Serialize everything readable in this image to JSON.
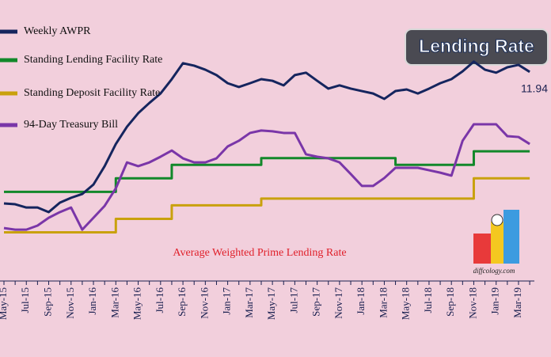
{
  "chart_data": {
    "type": "line",
    "title": "Average Weighted Prime Lending Rate",
    "badge": "Lending Rate",
    "watermark": "diffcology.com",
    "categories": [
      "May-15",
      null,
      "Jul-15",
      null,
      "Sep-15",
      null,
      "Nov-15",
      null,
      "Jan-16",
      null,
      "Mar-16",
      null,
      "May-16",
      null,
      "Jul-16",
      null,
      "Sep-16",
      null,
      "Nov-16",
      null,
      "Jan-17",
      null,
      "Mar-17",
      null,
      "May-17",
      null,
      "Jul-17",
      null,
      "Sep-17",
      null,
      "Nov-17",
      null,
      "Jan-18",
      null,
      "Mar-18",
      null,
      "May-18",
      null,
      "Jul-18",
      null,
      "Sep-18",
      null,
      "Nov-18",
      null,
      "Jan-19",
      null,
      "Mar-19",
      null
    ],
    "ylim": [
      4.2,
      14.6
    ],
    "series": [
      {
        "name": "Weekly AWPR",
        "color": "#15255e",
        "values": [
          7.07,
          7.04,
          6.92,
          6.92,
          6.75,
          7.1,
          7.28,
          7.42,
          7.77,
          8.45,
          9.27,
          9.91,
          10.41,
          10.79,
          11.14,
          11.67,
          12.26,
          12.17,
          12.02,
          11.82,
          11.52,
          11.38,
          11.52,
          11.67,
          11.61,
          11.44,
          11.82,
          11.91,
          11.61,
          11.32,
          11.44,
          11.32,
          11.23,
          11.14,
          10.94,
          11.23,
          11.29,
          11.14,
          11.32,
          11.52,
          11.67,
          11.96,
          12.32,
          12.02,
          11.91,
          12.11,
          12.2,
          11.94
        ]
      },
      {
        "name": "Standing Lending Facility Rate",
        "color": "#12882a",
        "step": true,
        "values": [
          7.5,
          7.5,
          7.5,
          7.5,
          7.5,
          7.5,
          7.5,
          7.5,
          7.5,
          7.5,
          8.0,
          8.0,
          8.0,
          8.0,
          8.0,
          8.5,
          8.5,
          8.5,
          8.5,
          8.5,
          8.5,
          8.5,
          8.5,
          8.75,
          8.75,
          8.75,
          8.75,
          8.75,
          8.75,
          8.75,
          8.75,
          8.75,
          8.75,
          8.75,
          8.75,
          8.5,
          8.5,
          8.5,
          8.5,
          8.5,
          8.5,
          8.5,
          9.0,
          9.0,
          9.0,
          9.0,
          9.0,
          9.0
        ]
      },
      {
        "name": "Standing Deposit Facility Rate",
        "color": "#c9a10d",
        "step": true,
        "values": [
          6.0,
          6.0,
          6.0,
          6.0,
          6.0,
          6.0,
          6.0,
          6.0,
          6.0,
          6.0,
          6.5,
          6.5,
          6.5,
          6.5,
          6.5,
          7.0,
          7.0,
          7.0,
          7.0,
          7.0,
          7.0,
          7.0,
          7.0,
          7.25,
          7.25,
          7.25,
          7.25,
          7.25,
          7.25,
          7.25,
          7.25,
          7.25,
          7.25,
          7.25,
          7.25,
          7.25,
          7.25,
          7.25,
          7.25,
          7.25,
          7.25,
          7.25,
          8.0,
          8.0,
          8.0,
          8.0,
          8.0,
          8.0
        ]
      },
      {
        "name": "94-Day Treasury Bill",
        "color": "#7a36a8",
        "values": [
          6.16,
          6.1,
          6.1,
          6.25,
          6.54,
          6.75,
          6.92,
          6.1,
          6.54,
          6.98,
          7.63,
          8.59,
          8.45,
          8.59,
          8.8,
          9.03,
          8.74,
          8.59,
          8.59,
          8.74,
          9.18,
          9.39,
          9.68,
          9.77,
          9.74,
          9.68,
          9.68,
          8.89,
          8.8,
          8.74,
          8.59,
          8.16,
          7.72,
          7.72,
          8.01,
          8.39,
          8.39,
          8.39,
          8.3,
          8.21,
          8.1,
          9.39,
          10.0,
          10.0,
          10.0,
          9.56,
          9.53,
          9.27
        ]
      }
    ]
  }
}
